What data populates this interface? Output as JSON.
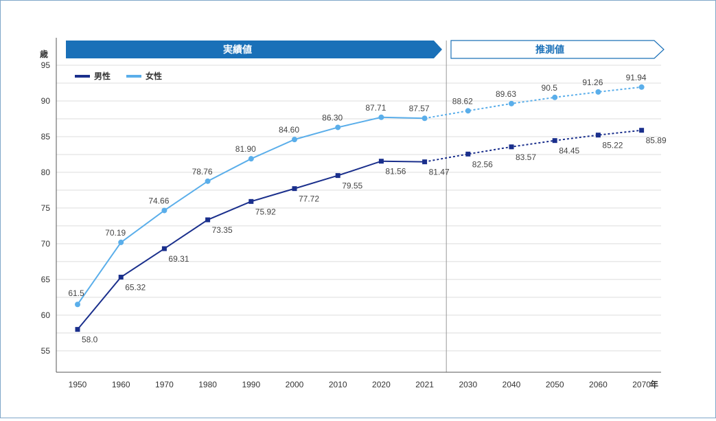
{
  "chart_data": {
    "type": "line",
    "ylabel": "歳",
    "xlabel": "年",
    "ylim": [
      52,
      95
    ],
    "yticks": [
      55,
      60,
      65,
      70,
      75,
      80,
      85,
      90,
      95
    ],
    "grid": true,
    "legend_position": "top-left",
    "categories": [
      "1950",
      "1960",
      "1970",
      "1980",
      "1990",
      "2000",
      "2010",
      "2020",
      "2021",
      "2030",
      "2040",
      "2050",
      "2060",
      "2070"
    ],
    "actual_label": "実績値",
    "projection_label": "推測値",
    "projection_start_index": 8,
    "series": [
      {
        "name": "男性",
        "color": "#1a2f8c",
        "marker": "square",
        "values": [
          58.0,
          65.32,
          69.31,
          73.35,
          75.92,
          77.72,
          79.55,
          81.56,
          81.47,
          82.56,
          83.57,
          84.45,
          85.22,
          85.89
        ],
        "labels": [
          "58.0",
          "65.32",
          "69.31",
          "73.35",
          "75.92",
          "77.72",
          "79.55",
          "81.56",
          "81.47",
          "82.56",
          "83.57",
          "84.45",
          "85.22",
          "85.89"
        ]
      },
      {
        "name": "女性",
        "color": "#5aaeea",
        "marker": "circle",
        "values": [
          61.5,
          70.19,
          74.66,
          78.76,
          81.9,
          84.6,
          86.3,
          87.71,
          87.57,
          88.62,
          89.63,
          90.5,
          91.26,
          91.94
        ],
        "labels": [
          "61.5",
          "70.19",
          "74.66",
          "78.76",
          "81.90",
          "84.60",
          "86.30",
          "87.71",
          "87.57",
          "88.62",
          "89.63",
          "90.5",
          "91.26",
          "91.94"
        ]
      }
    ]
  }
}
